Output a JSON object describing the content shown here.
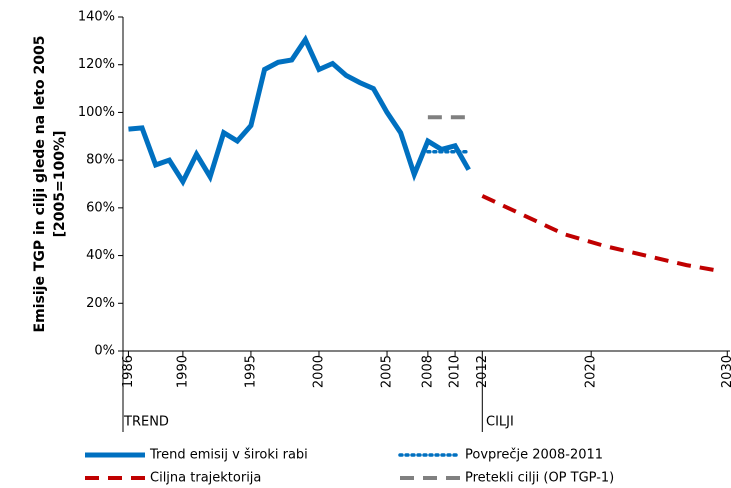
{
  "chart_data": {
    "type": "line",
    "y_label": [
      "Emisije TGP in cilji glede na leto 2005",
      "[2005=100%]"
    ],
    "section_labels": [
      "TREND",
      "CILJI"
    ],
    "xlim": [
      1985.6,
      2030.2
    ],
    "xticks": [
      1986,
      1990,
      1995,
      2000,
      2005,
      2008,
      2010,
      2012,
      2020,
      2030
    ],
    "ylim": [
      0,
      140
    ],
    "yticks": [
      {
        "value": 0,
        "label": "0%"
      },
      {
        "value": 20,
        "label": "20%"
      },
      {
        "value": 40,
        "label": "40%"
      },
      {
        "value": 60,
        "label": "60%"
      },
      {
        "value": 80,
        "label": "80%"
      },
      {
        "value": 100,
        "label": "100%"
      },
      {
        "value": 120,
        "label": "120%"
      },
      {
        "value": 140,
        "label": "140%"
      }
    ],
    "legend": "bottom",
    "series": [
      {
        "name": "Trend emisij v široki rabi",
        "color": "#0070c0",
        "style": "solid",
        "x": [
          1986,
          1987,
          1988,
          1989,
          1990,
          1991,
          1992,
          1993,
          1994,
          1995,
          1996,
          1997,
          1998,
          1999,
          2000,
          2001,
          2002,
          2003,
          2004,
          2005,
          2006,
          2007,
          2008,
          2009,
          2010,
          2011
        ],
        "values": [
          93,
          93.5,
          78,
          80,
          71,
          82.5,
          73,
          91.5,
          88,
          94.5,
          118,
          121,
          122,
          130.5,
          118,
          120.5,
          115.5,
          112.5,
          110,
          100,
          91.5,
          74,
          88,
          84.5,
          86,
          76
        ]
      },
      {
        "name": "Povprečje 2008-2011",
        "color": "#0070c0",
        "style": "dotted",
        "x": [
          2008,
          2009,
          2010,
          2011
        ],
        "values": [
          83.5,
          83.5,
          83.5,
          83.5
        ]
      },
      {
        "name": "Ciljna trajektorija",
        "color": "#c00000",
        "style": "dashed",
        "x": [
          2012,
          2015,
          2018,
          2021,
          2024,
          2027,
          2029
        ],
        "values": [
          65,
          57,
          49,
          44,
          40,
          36,
          34
        ]
      },
      {
        "name": "Pretekli cilji (OP TGP-1)",
        "color": "#808080",
        "style": "dashed",
        "x": [
          2008,
          2009,
          2010,
          2011
        ],
        "values": [
          98,
          98,
          98,
          98
        ]
      }
    ]
  }
}
